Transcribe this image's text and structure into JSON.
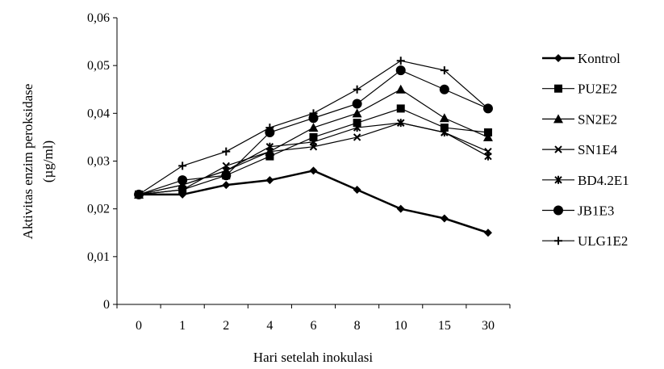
{
  "chart_data": {
    "type": "line",
    "title": "",
    "xlabel": "Hari setelah inokulasi",
    "ylabel_line1": "Aktivitas enzim peroksidase",
    "ylabel_line2": "(µg/ml)",
    "categories": [
      "0",
      "1",
      "2",
      "4",
      "6",
      "8",
      "10",
      "15",
      "30"
    ],
    "ylim": [
      0,
      0.06
    ],
    "yticks": [
      0,
      0.01,
      0.02,
      0.03,
      0.04,
      0.05,
      0.06
    ],
    "ytick_labels": [
      "0",
      "0,01",
      "0,02",
      "0,03",
      "0,04",
      "0,05",
      "0,06"
    ],
    "legend_position": "right",
    "grid": false,
    "series": [
      {
        "name": "Kontrol",
        "marker": "diamond",
        "color": "#000000",
        "values": [
          0.023,
          0.023,
          0.025,
          0.026,
          0.028,
          0.024,
          0.02,
          0.018,
          0.015
        ]
      },
      {
        "name": "PU2E2",
        "marker": "square",
        "color": "#000000",
        "values": [
          0.023,
          0.024,
          0.027,
          0.031,
          0.035,
          0.038,
          0.041,
          0.037,
          0.036
        ]
      },
      {
        "name": "SN2E2",
        "marker": "triangle",
        "color": "#000000",
        "values": [
          0.023,
          0.025,
          0.028,
          0.032,
          0.037,
          0.04,
          0.045,
          0.039,
          0.035
        ]
      },
      {
        "name": "SN1E4",
        "marker": "x",
        "color": "#000000",
        "values": [
          0.023,
          0.024,
          0.029,
          0.032,
          0.033,
          0.035,
          0.038,
          0.036,
          0.032
        ]
      },
      {
        "name": "BD4.2E1",
        "marker": "asterisk",
        "color": "#000000",
        "values": [
          0.023,
          0.025,
          0.028,
          0.033,
          0.034,
          0.037,
          0.038,
          0.036,
          0.031
        ]
      },
      {
        "name": "JB1E3",
        "marker": "circle",
        "color": "#000000",
        "values": [
          0.023,
          0.026,
          0.027,
          0.036,
          0.039,
          0.042,
          0.049,
          0.045,
          0.041
        ]
      },
      {
        "name": "ULG1E2",
        "marker": "plus",
        "color": "#000000",
        "values": [
          0.023,
          0.029,
          0.032,
          0.037,
          0.04,
          0.045,
          0.051,
          0.049,
          0.041
        ]
      }
    ]
  }
}
